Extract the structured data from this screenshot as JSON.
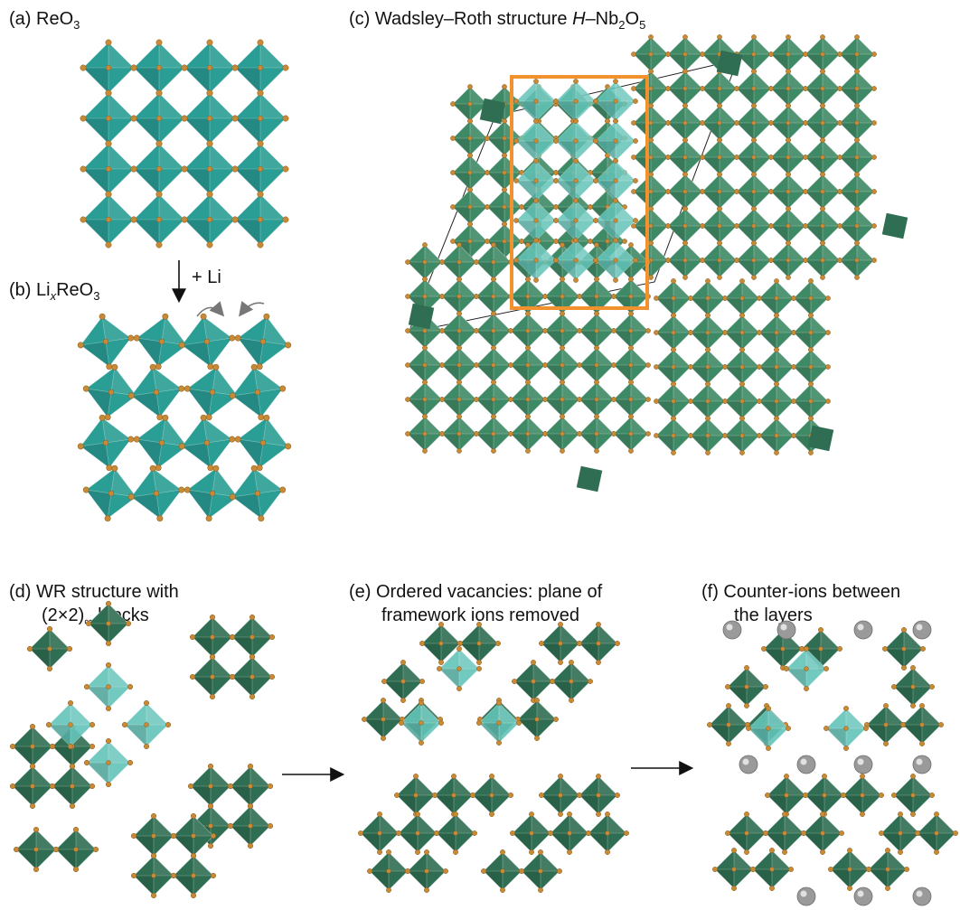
{
  "panels": {
    "a": {
      "prefix": "(a) ReO",
      "sub": "3",
      "suffix": ""
    },
    "b": {
      "prefix": "(b) Li",
      "ital": "x",
      "mid": "ReO",
      "sub": "3"
    },
    "c": {
      "prefix": "(c) Wadsley–Roth structure ",
      "ital": "H",
      "mid": "–Nb",
      "sub1": "2",
      "mid2": "O",
      "sub2": "5"
    },
    "d": {
      "line1": "(d) WR structure with",
      "line2a": "(2×2)",
      "line2sub": "∞",
      "line2b": " blocks"
    },
    "e": {
      "line1": "(e) Ordered vacancies: plane of",
      "line2": "framework ions removed"
    },
    "f": {
      "line1": "(f) Counter-ions between",
      "line2": "the layers"
    }
  },
  "arrow_ab": {
    "label": "+ Li"
  },
  "colors": {
    "teal": "#2a9d94",
    "teal_light": "#63c4b9",
    "green_dark": "#2f6e52",
    "green_mid": "#3f8a66",
    "oxygen": "#c98a36",
    "highlight_box": "#f2922e",
    "counter_ion": "#9a9a9a"
  }
}
